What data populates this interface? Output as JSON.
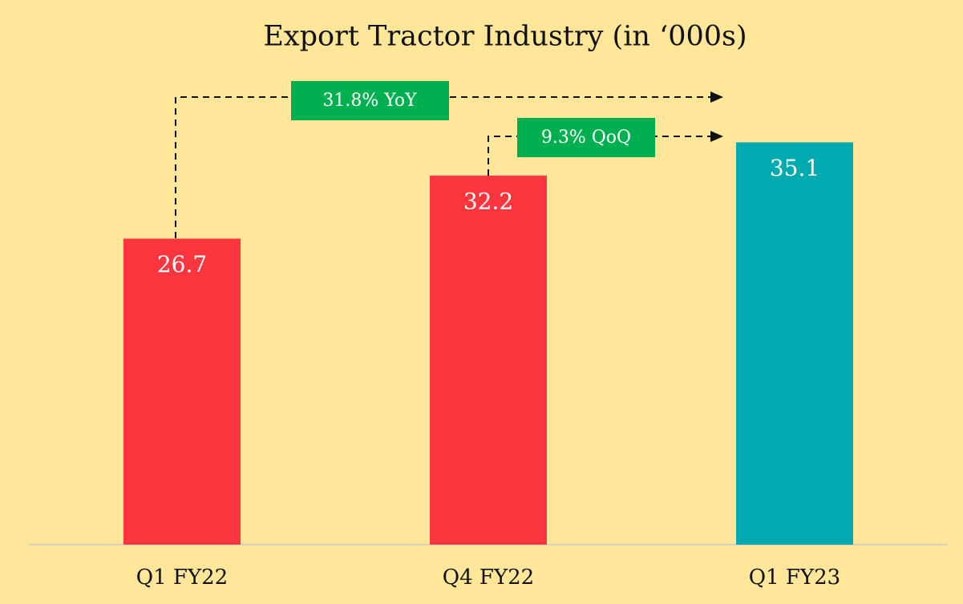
{
  "chart_data": {
    "type": "bar",
    "title": "Export Tractor Industry (in ‘000s)",
    "categories": [
      "Q1 FY22",
      "Q4 FY22",
      "Q1 FY23"
    ],
    "values": [
      26.7,
      32.2,
      35.1
    ],
    "colors": [
      "#fc363e",
      "#fc363e",
      "#00aaae"
    ],
    "ylim": [
      0,
      45
    ],
    "annotations": [
      "31.8% YoY",
      "9.3% QoQ"
    ]
  }
}
